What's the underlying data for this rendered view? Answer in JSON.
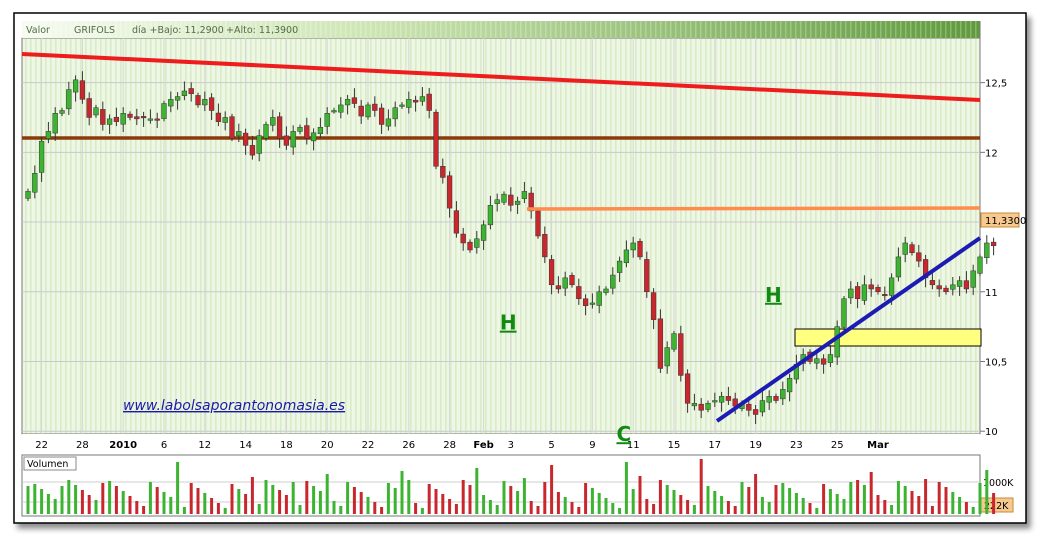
{
  "header": {
    "label": "Valor",
    "ticker": "GRIFOLS",
    "low_label": "día +Bajo: 11,2900",
    "high_label": "+Alto: 11,3900"
  },
  "watermark": "www.labolsaporantonomasia.es",
  "last_price_label": "11,3300",
  "volume_panel": {
    "title": "Volumen",
    "tick_labels": [
      "1000K",
      "222K"
    ]
  },
  "colors": {
    "up": "#3cb431",
    "down": "#c8282d",
    "resistance_red": "#ee1c1c",
    "support_brown": "#8b3b0a",
    "neckline_orange": "#ff8c4c",
    "trend_blue": "#1c1cb4",
    "zone_yellow": "#ffff80",
    "pattern_green": "#118a11",
    "link_blue": "#1a1aa8"
  },
  "annotations": [
    {
      "text": "H",
      "x": "Feb 2",
      "y": 10.8
    },
    {
      "text": "C",
      "x": "Feb 10",
      "y": 10.0
    },
    {
      "text": "H",
      "x": "Feb 20",
      "y": 11.0
    }
  ],
  "chart_data": {
    "type": "candlestick",
    "title": "GRIFOLS",
    "ylim": [
      9.98,
      12.82
    ],
    "y_ticks": [
      10,
      10.5,
      11,
      11.5,
      12,
      12.5
    ],
    "y_tick_labels": [
      "10",
      "10,5",
      "11",
      "11,5",
      "12",
      "12,5"
    ],
    "x_tick_labels": [
      "22",
      "28",
      "2010",
      "6",
      "12",
      "14",
      "18",
      "20",
      "22",
      "26",
      "28",
      "Feb",
      "3",
      "5",
      "9",
      "11",
      "15",
      "17",
      "19",
      "23",
      "25",
      "Mar"
    ],
    "x_tick_sessions": [
      2,
      8,
      14,
      20,
      26,
      32,
      38,
      44,
      50,
      56,
      62,
      67,
      71,
      77,
      83,
      89,
      95,
      101,
      107,
      113,
      119,
      125
    ],
    "grid": true,
    "close": [
      11.72,
      11.85,
      12.08,
      12.15,
      12.28,
      12.3,
      12.45,
      12.52,
      12.38,
      12.25,
      12.32,
      12.2,
      12.24,
      12.22,
      12.28,
      12.25,
      12.24,
      12.25,
      12.24,
      12.23,
      12.35,
      12.38,
      12.4,
      12.44,
      12.42,
      12.34,
      12.38,
      12.3,
      12.22,
      12.25,
      12.1,
      12.15,
      12.05,
      11.98,
      12.12,
      12.2,
      12.25,
      12.1,
      12.05,
      12.15,
      12.18,
      12.1,
      12.14,
      12.18,
      12.28,
      12.3,
      12.34,
      12.38,
      12.35,
      12.26,
      12.34,
      12.3,
      12.2,
      12.24,
      12.32,
      12.34,
      12.38,
      12.36,
      12.4,
      12.3,
      11.9,
      11.82,
      11.6,
      11.42,
      11.35,
      11.3,
      11.38,
      11.48,
      11.62,
      11.66,
      11.7,
      11.62,
      11.65,
      11.72,
      11.58,
      11.4,
      11.25,
      11.05,
      11.02,
      11.1,
      11.05,
      10.95,
      10.9,
      10.92,
      11.0,
      11.02,
      11.12,
      11.22,
      11.3,
      11.35,
      11.25,
      11.0,
      10.8,
      10.45,
      10.6,
      10.7,
      10.4,
      10.2,
      10.2,
      10.15,
      10.2,
      10.22,
      10.25,
      10.22,
      10.18,
      10.2,
      10.15,
      10.12,
      10.22,
      10.25,
      10.22,
      10.3,
      10.38,
      10.48,
      10.55,
      10.5,
      10.52,
      10.48,
      10.55,
      10.75,
      10.95,
      11.02,
      10.95,
      11.05,
      11.02,
      11.0,
      10.98,
      11.1,
      11.25,
      11.35,
      11.28,
      11.22,
      11.1,
      11.05,
      11.02,
      11.0,
      11.05,
      11.08,
      11.02,
      11.15,
      11.25,
      11.35,
      11.33
    ]
  }
}
